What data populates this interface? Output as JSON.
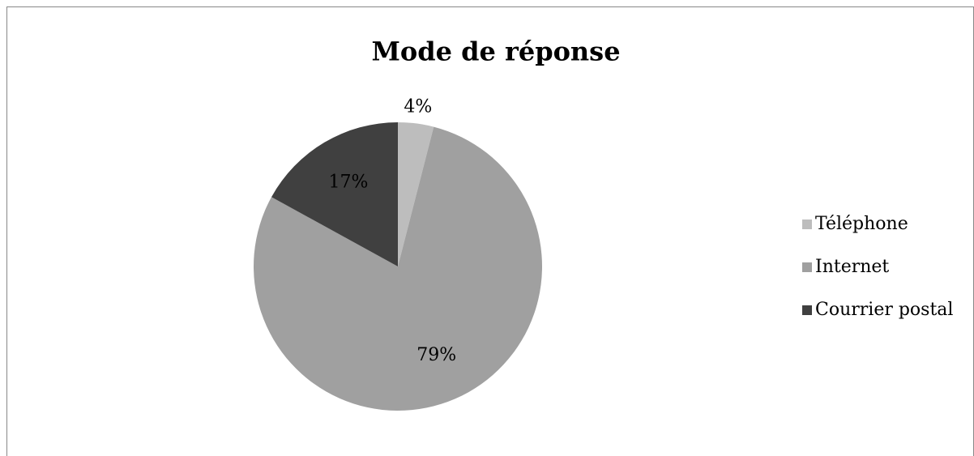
{
  "chart_data": {
    "type": "pie",
    "title": "Mode de réponse",
    "categories": [
      "Téléphone",
      "Internet",
      "Courrier postal"
    ],
    "values": [
      4,
      79,
      17
    ],
    "value_labels": [
      "4%",
      "79%",
      "17%"
    ],
    "colors": [
      "#bdbdbd",
      "#a0a0a0",
      "#404040"
    ],
    "legend": "right"
  }
}
